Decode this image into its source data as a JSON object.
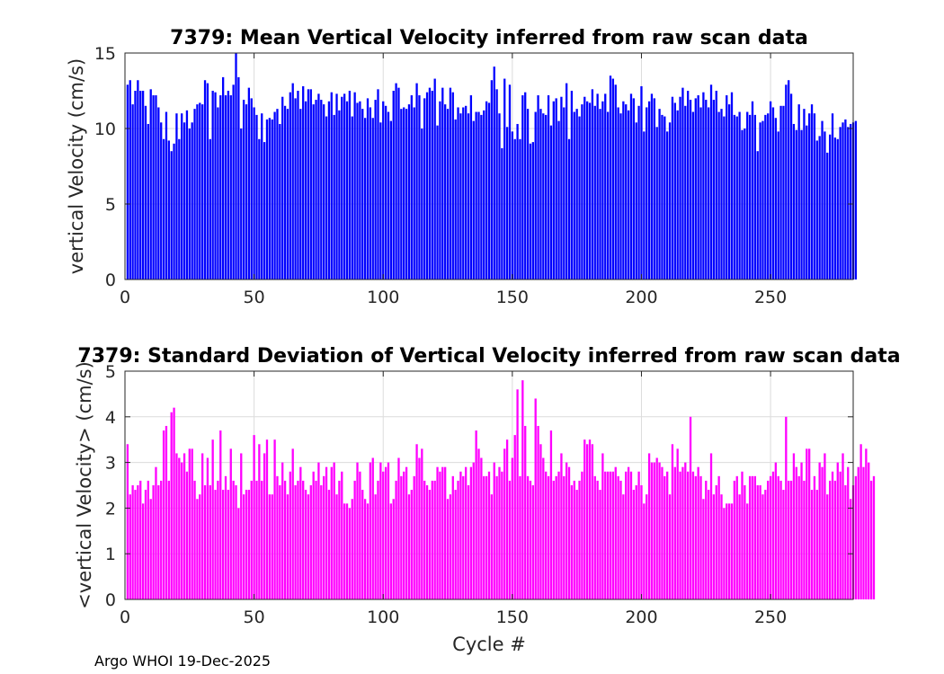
{
  "figure": {
    "footer": "Argo WHOI 19-Dec-2025"
  },
  "chart_data": [
    {
      "type": "bar",
      "title": "7379: Mean Vertical Velocity inferred from raw scan data",
      "xlabel": "",
      "ylabel": "vertical Velocity (cm/s)",
      "xlim": [
        0,
        282
      ],
      "ylim": [
        0,
        15
      ],
      "xticks": [
        0,
        50,
        100,
        150,
        200,
        250
      ],
      "yticks": [
        0,
        5,
        10,
        15
      ],
      "grid": true,
      "color": "#0000ff",
      "x_start": 1,
      "values": [
        12.9,
        13.2,
        11.6,
        12.5,
        13.2,
        12.5,
        12.5,
        11.5,
        10.3,
        12.6,
        12.2,
        12.2,
        11.4,
        10.4,
        9.3,
        11.1,
        9.2,
        8.5,
        9.0,
        11.0,
        9.3,
        11.0,
        10.4,
        11.2,
        10.0,
        10.4,
        11.3,
        11.6,
        11.7,
        11.6,
        13.2,
        13.0,
        9.3,
        12.5,
        12.4,
        11.4,
        12.2,
        13.4,
        12.2,
        12.5,
        12.2,
        12.9,
        15.0,
        13.4,
        10.0,
        11.9,
        11.6,
        12.7,
        12.0,
        11.4,
        10.9,
        9.3,
        11.0,
        9.1,
        10.6,
        10.7,
        10.6,
        11.1,
        11.3,
        10.3,
        12.1,
        11.5,
        11.3,
        12.4,
        13.0,
        12.0,
        12.5,
        11.3,
        12.8,
        11.8,
        12.6,
        12.6,
        11.6,
        11.9,
        12.3,
        11.9,
        11.6,
        10.8,
        11.8,
        12.4,
        10.9,
        12.3,
        11.2,
        12.1,
        12.3,
        11.8,
        12.5,
        10.8,
        12.4,
        11.7,
        11.8,
        11.3,
        10.7,
        12.0,
        11.4,
        10.7,
        11.9,
        12.6,
        10.4,
        11.8,
        11.5,
        11.1,
        10.5,
        12.5,
        13.0,
        12.7,
        11.3,
        11.4,
        11.3,
        11.6,
        12.2,
        11.4,
        13.0,
        12.2,
        10.0,
        12.0,
        12.4,
        12.7,
        12.5,
        13.3,
        10.2,
        11.8,
        12.7,
        11.6,
        11.3,
        12.7,
        12.4,
        10.6,
        11.4,
        11.0,
        11.4,
        11.5,
        11.0,
        12.2,
        10.5,
        11.1,
        11.1,
        10.9,
        11.2,
        11.8,
        11.7,
        13.2,
        14.1,
        12.6,
        11.0,
        8.7,
        13.3,
        10.1,
        12.9,
        9.8,
        9.3,
        10.3,
        9.3,
        12.2,
        12.4,
        11.3,
        9.0,
        9.1,
        11.1,
        12.2,
        11.3,
        11.0,
        10.9,
        12.2,
        10.2,
        11.8,
        12.0,
        10.5,
        12.1,
        11.4,
        13.0,
        9.3,
        12.5,
        11.1,
        11.3,
        10.8,
        11.6,
        12.1,
        11.8,
        11.7,
        12.6,
        11.5,
        12.3,
        11.3,
        11.8,
        12.3,
        11.1,
        13.5,
        13.3,
        12.9,
        11.4,
        11.0,
        11.8,
        11.6,
        11.2,
        12.3,
        12.0,
        10.4,
        11.5,
        12.8,
        9.8,
        11.4,
        11.8,
        12.3,
        12.0,
        10.1,
        11.3,
        10.9,
        10.8,
        9.8,
        10.4,
        12.1,
        11.7,
        11.2,
        12.1,
        12.7,
        11.5,
        12.5,
        11.9,
        11.1,
        12.0,
        12.2,
        11.4,
        12.4,
        11.9,
        11.4,
        12.9,
        11.9,
        12.5,
        11.1,
        11.3,
        10.8,
        12.2,
        11.6,
        12.4,
        10.9,
        10.8,
        11.1,
        9.9,
        10.0,
        11.1,
        10.9,
        11.8,
        10.9,
        8.5,
        10.4,
        10.5,
        10.9,
        11.0,
        11.8,
        11.4,
        10.7,
        9.8,
        11.5,
        11.5,
        12.9,
        13.2,
        12.3,
        10.3,
        9.9,
        11.6,
        9.9,
        11.3,
        10.2,
        11.0,
        11.6,
        11.0,
        9.2,
        9.5,
        10.5,
        9.8,
        8.4,
        9.6,
        11.0,
        9.4,
        9.3,
        10.1,
        10.4,
        10.6,
        10.1,
        10.3,
        10.4,
        10.5
      ]
    },
    {
      "type": "bar",
      "title": "7379: Standard Deviation of Vertical Velocity inferred from raw scan data",
      "xlabel": "Cycle #",
      "ylabel": "<vertical Velocity> (cm/s)",
      "xlim": [
        0,
        282
      ],
      "ylim": [
        0,
        5
      ],
      "xticks": [
        0,
        50,
        100,
        150,
        200,
        250
      ],
      "yticks": [
        0,
        1,
        2,
        3,
        4,
        5
      ],
      "grid": true,
      "color": "#ff00ff",
      "x_start": 1,
      "values": [
        3.4,
        2.3,
        2.5,
        2.4,
        2.5,
        2.6,
        2.1,
        2.4,
        2.6,
        2.2,
        2.5,
        2.9,
        2.5,
        2.6,
        3.7,
        3.8,
        2.6,
        4.1,
        4.2,
        3.2,
        3.1,
        3.0,
        3.2,
        2.8,
        3.3,
        3.3,
        2.6,
        2.2,
        2.3,
        3.2,
        2.5,
        3.1,
        2.5,
        3.5,
        2.4,
        2.6,
        3.7,
        2.4,
        2.7,
        2.4,
        3.3,
        2.6,
        2.5,
        2.0,
        3.2,
        2.3,
        2.4,
        2.4,
        2.6,
        3.6,
        2.6,
        3.4,
        2.6,
        3.2,
        3.5,
        2.3,
        2.3,
        3.5,
        2.7,
        2.5,
        3.0,
        2.6,
        2.3,
        2.8,
        3.3,
        2.5,
        2.6,
        2.9,
        2.6,
        2.4,
        2.3,
        2.5,
        2.8,
        2.6,
        3.0,
        2.5,
        2.7,
        2.9,
        2.4,
        2.9,
        3.0,
        2.3,
        2.6,
        2.8,
        2.1,
        2.1,
        2.0,
        2.2,
        2.6,
        3.0,
        2.8,
        2.4,
        2.2,
        2.1,
        3.0,
        3.1,
        2.3,
        2.6,
        3.0,
        2.8,
        2.9,
        3.0,
        2.1,
        2.2,
        2.6,
        3.1,
        2.7,
        2.8,
        2.9,
        2.3,
        2.4,
        2.7,
        3.4,
        3.1,
        3.3,
        2.6,
        2.5,
        2.4,
        2.6,
        2.6,
        2.9,
        2.8,
        2.9,
        2.9,
        2.2,
        2.3,
        2.7,
        2.4,
        2.6,
        2.8,
        2.7,
        2.9,
        2.5,
        2.9,
        3.0,
        3.7,
        3.3,
        3.1,
        2.7,
        2.7,
        2.8,
        2.3,
        3.0,
        2.7,
        2.9,
        2.8,
        3.3,
        3.5,
        2.6,
        3.1,
        3.6,
        4.6,
        2.7,
        4.8,
        3.8,
        2.7,
        2.6,
        2.5,
        4.4,
        3.8,
        3.4,
        3.1,
        2.8,
        2.7,
        3.7,
        2.6,
        2.7,
        2.8,
        3.2,
        2.7,
        3.0,
        2.9,
        2.5,
        2.6,
        2.4,
        2.6,
        2.8,
        3.5,
        3.4,
        3.5,
        3.4,
        2.7,
        2.6,
        2.4,
        3.2,
        2.8,
        2.8,
        2.8,
        2.8,
        2.9,
        2.7,
        2.6,
        2.3,
        2.8,
        2.9,
        2.8,
        2.4,
        2.5,
        2.8,
        2.5,
        2.1,
        2.3,
        3.2,
        3.0,
        3.0,
        3.1,
        3.0,
        2.9,
        2.7,
        2.8,
        2.3,
        3.4,
        2.9,
        3.3,
        2.8,
        2.9,
        3.0,
        2.8,
        4.0,
        2.8,
        2.7,
        2.9,
        2.7,
        2.2,
        2.6,
        2.4,
        3.2,
        2.3,
        2.5,
        2.7,
        2.3,
        2.0,
        2.1,
        2.1,
        2.1,
        2.6,
        2.7,
        2.3,
        2.8,
        2.5,
        2.1,
        2.7,
        2.7,
        2.7,
        2.5,
        2.5,
        2.3,
        2.4,
        2.6,
        2.7,
        2.8,
        3.0,
        2.7,
        2.6,
        2.4,
        4.0,
        2.6,
        2.6,
        3.2,
        2.9,
        2.7,
        3.0,
        2.6,
        3.3,
        3.3,
        2.4,
        2.7,
        2.4,
        3.0,
        2.9,
        3.2,
        2.3,
        2.6,
        2.8,
        2.6,
        3.0,
        2.8,
        3.2,
        2.5,
        2.9,
        2.2,
        2.5,
        2.7,
        2.9,
        3.4,
        2.9,
        3.3,
        3.0,
        2.6,
        2.7
      ]
    }
  ]
}
